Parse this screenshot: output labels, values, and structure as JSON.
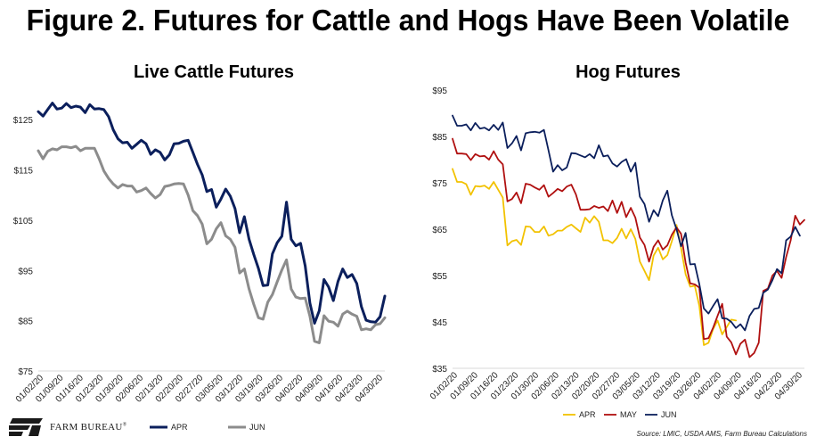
{
  "figure_title": "Figure 2. Futures for Cattle and Hogs Have Been Volatile",
  "logo": {
    "text": "FARM BUREAU",
    "mark": "®"
  },
  "source": "Source: LMIC, USDA AMS, Farm Bureau Calculations",
  "colors": {
    "apr_cattle": "#0b1f5c",
    "jun_cattle": "#8c8c8c",
    "hog_apr": "#f2c200",
    "hog_may": "#b01010",
    "hog_jun": "#0b1f5c"
  },
  "chart_data": [
    {
      "type": "line",
      "title": "Live Cattle Futures",
      "ylim": [
        75,
        130
      ],
      "y_ticks": [
        "$75",
        "$85",
        "$95",
        "$105",
        "$115",
        "$125"
      ],
      "y_tick_values": [
        75,
        85,
        95,
        105,
        115,
        125
      ],
      "x_ticks": [
        "01/02/20",
        "01/09/20",
        "01/16/20",
        "01/23/20",
        "01/30/20",
        "02/06/20",
        "02/13/20",
        "02/20/20",
        "02/27/20",
        "03/05/20",
        "03/12/20",
        "03/19/20",
        "03/26/20",
        "04/02/20",
        "04/09/20",
        "04/16/20",
        "04/23/20",
        "04/30/20"
      ],
      "legend_position": "bottom",
      "series": [
        {
          "name": "APR",
          "color": "#0b1f5c",
          "values": [
            126.6,
            125.7,
            127.0,
            128.3,
            127.1,
            127.3,
            128.2,
            127.4,
            127.7,
            127.5,
            126.4,
            128.0,
            127.1,
            127.2,
            127.0,
            125.6,
            123.0,
            121.2,
            120.4,
            120.5,
            119.3,
            120.1,
            120.9,
            120.2,
            118.1,
            119.0,
            118.5,
            117.0,
            118.0,
            120.2,
            120.3,
            120.7,
            120.9,
            118.5,
            116.1,
            114.0,
            110.7,
            111.1,
            107.6,
            109.2,
            111.2,
            109.8,
            107.3,
            102.5,
            105.7,
            101.2,
            98.2,
            95.4,
            92.0,
            92.1,
            98.3,
            100.5,
            101.8,
            108.6,
            101.2,
            99.9,
            100.4,
            95.9,
            88.5,
            84.5,
            87.0,
            93.2,
            91.7,
            89.0,
            92.8,
            95.3,
            93.6,
            94.2,
            92.4,
            87.8,
            85.1,
            84.8,
            84.7,
            85.8,
            89.9
          ]
        },
        {
          "name": "JUN",
          "color": "#8c8c8c",
          "values": [
            118.8,
            117.2,
            118.7,
            119.2,
            119.0,
            119.6,
            119.6,
            119.4,
            119.7,
            118.8,
            119.3,
            119.3,
            119.3,
            117.2,
            114.8,
            113.3,
            112.2,
            111.4,
            112.1,
            111.8,
            111.8,
            110.6,
            110.9,
            111.4,
            110.3,
            109.4,
            110.1,
            111.7,
            111.9,
            112.2,
            112.3,
            112.2,
            110.0,
            106.9,
            105.9,
            104.2,
            100.3,
            101.2,
            103.3,
            104.5,
            101.9,
            101.2,
            99.6,
            94.5,
            95.3,
            91.3,
            88.3,
            85.6,
            85.3,
            88.7,
            90.2,
            92.7,
            95.1,
            97.1,
            91.3,
            89.7,
            89.4,
            89.5,
            85.9,
            80.9,
            80.6,
            86.0,
            84.9,
            84.7,
            83.9,
            86.3,
            86.9,
            86.3,
            85.9,
            83.2,
            83.4,
            83.2,
            84.2,
            84.4,
            85.6
          ]
        }
      ]
    },
    {
      "type": "line",
      "title": "Hog Futures",
      "ylim": [
        35,
        95
      ],
      "y_ticks": [
        "$35",
        "$45",
        "$55",
        "$65",
        "$75",
        "$85",
        "$95"
      ],
      "y_tick_values": [
        35,
        45,
        55,
        65,
        75,
        85,
        95
      ],
      "x_ticks": [
        "01/02/20",
        "01/09/20",
        "01/16/20",
        "01/23/20",
        "01/30/20",
        "02/06/20",
        "02/13/20",
        "02/20/20",
        "02/27/20",
        "03/05/20",
        "03/12/20",
        "03/19/20",
        "03/26/20",
        "04/02/20",
        "04/09/20",
        "04/16/20",
        "04/23/20",
        "04/30/20"
      ],
      "legend_position": "bottom",
      "series": [
        {
          "name": "APR",
          "color": "#f2c200",
          "values": [
            78.0,
            75.2,
            75.2,
            74.7,
            72.4,
            74.3,
            74.2,
            74.4,
            73.7,
            75.2,
            73.5,
            71.8,
            61.5,
            62.4,
            62.7,
            61.6,
            65.6,
            65.5,
            64.4,
            64.4,
            65.6,
            63.6,
            63.9,
            64.7,
            64.7,
            65.5,
            66.0,
            65.2,
            64.4,
            67.5,
            66.4,
            67.8,
            66.6,
            62.6,
            62.6,
            62.0,
            63.1,
            65.1,
            63.0,
            65.0,
            62.9,
            58.0,
            56.0,
            54.0,
            59.3,
            61.0,
            58.5,
            59.4,
            62.4,
            65.9,
            61.0,
            55.3,
            52.6,
            52.8,
            48.5,
            40.0,
            40.5,
            43.4,
            45.3,
            42.3,
            43.9,
            45.5,
            45.3
          ]
        },
        {
          "name": "MAY",
          "color": "#b01010",
          "values": [
            84.5,
            81.3,
            81.3,
            81.2,
            79.9,
            81.2,
            80.7,
            80.8,
            80.0,
            81.8,
            80.0,
            79.0,
            71.0,
            71.5,
            72.9,
            70.6,
            74.8,
            74.6,
            74.0,
            73.5,
            74.5,
            72.0,
            72.8,
            73.7,
            73.2,
            74.2,
            74.6,
            72.5,
            69.2,
            69.2,
            69.3,
            70.0,
            69.6,
            69.9,
            68.9,
            71.2,
            68.5,
            70.9,
            67.6,
            69.6,
            67.5,
            63.2,
            61.6,
            58.0,
            61.2,
            62.6,
            60.6,
            61.5,
            63.8,
            65.4,
            64.0,
            57.8,
            53.3,
            53.1,
            52.4,
            41.3,
            41.5,
            43.7,
            46.3,
            48.9,
            41.8,
            40.6,
            38.0,
            40.3,
            41.2,
            37.4,
            38.3,
            40.5,
            51.7,
            52.2,
            55.0,
            56.0,
            54.5,
            59.0,
            62.6,
            67.9,
            66.0,
            67.0
          ]
        },
        {
          "name": "JUN",
          "color": "#0b1f5c",
          "values": [
            89.5,
            87.3,
            87.3,
            87.6,
            86.3,
            87.9,
            86.7,
            86.9,
            86.3,
            87.5,
            86.4,
            88.0,
            82.5,
            83.5,
            85.1,
            82.0,
            85.7,
            85.9,
            86.0,
            85.8,
            86.4,
            82.0,
            77.4,
            78.8,
            77.7,
            78.3,
            81.4,
            81.3,
            80.9,
            80.5,
            81.2,
            80.3,
            83.1,
            80.7,
            80.9,
            79.2,
            78.5,
            79.5,
            80.1,
            77.4,
            79.3,
            72.0,
            70.4,
            66.6,
            69.1,
            67.8,
            71.2,
            73.3,
            68.0,
            65.0,
            61.3,
            64.2,
            57.4,
            57.5,
            53.2,
            47.9,
            46.8,
            48.4,
            49.9,
            45.8,
            45.7,
            45.0,
            43.7,
            44.5,
            43.2,
            46.3,
            47.8,
            48.0,
            51.3,
            52.0,
            54.0,
            56.4,
            55.5,
            62.6,
            63.4,
            65.5,
            63.6
          ]
        }
      ]
    }
  ]
}
